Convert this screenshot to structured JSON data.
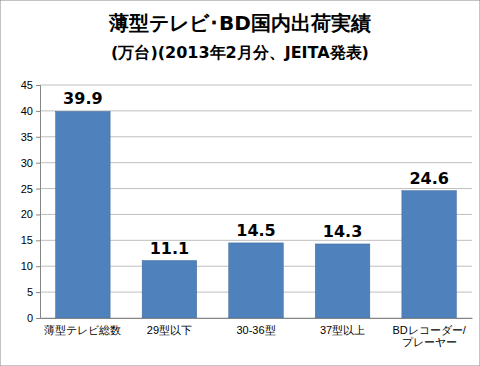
{
  "chart_data": {
    "type": "bar",
    "title": "薄型テレビ･BD国内出荷実績",
    "subtitle": "(万台)(2013年2月分、JEITA発表)",
    "categories": [
      "薄型テレビ総数",
      "29型以下",
      "30-36型",
      "37型以上",
      "BDレコーダー/プレーヤー"
    ],
    "values": [
      39.9,
      11.1,
      14.5,
      14.3,
      24.6
    ],
    "color": "#4f81bd",
    "ylim": [
      0,
      45
    ],
    "yticks": [
      0,
      5,
      10,
      15,
      20,
      25,
      30,
      35,
      40,
      45
    ],
    "grid": true,
    "data_labels": true
  }
}
